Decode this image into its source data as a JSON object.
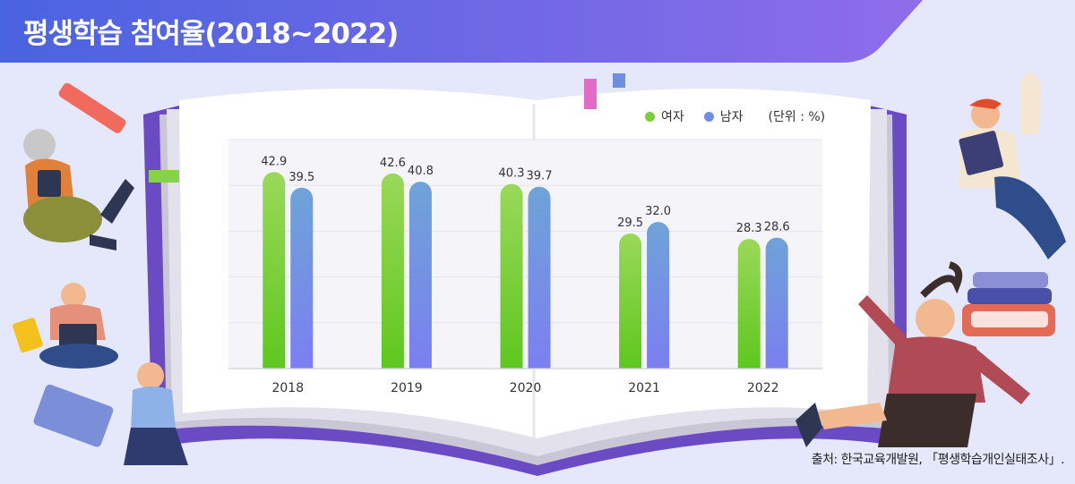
{
  "title": "평생학습 참여율(2018~2022)",
  "source": "출처: 한국교육개발원, 「평생학습개인실태조사」.",
  "colors": {
    "background": "#e5e8fb",
    "title_bar_start": "#4a63e0",
    "title_bar_end": "#8f6cea",
    "female": "#7ccd3c",
    "male": "#6e8ee0",
    "book_cover": "#6a4bc4"
  },
  "chart_data": {
    "type": "bar",
    "title": "평생학습 참여율(2018~2022)",
    "categories": [
      "2018",
      "2019",
      "2020",
      "2021",
      "2022"
    ],
    "series": [
      {
        "name": "여자",
        "values": [
          42.9,
          42.6,
          40.3,
          29.5,
          28.3
        ]
      },
      {
        "name": "남자",
        "values": [
          39.5,
          40.8,
          39.7,
          32.0,
          28.6
        ]
      }
    ],
    "value_labels": {
      "여자": [
        "42.9",
        "42.6",
        "40.3",
        "29.5",
        "28.3"
      ],
      "남자": [
        "39.5",
        "40.8",
        "39.7",
        "32.0",
        "28.6"
      ]
    },
    "unit_label": "(단위 : %)",
    "xlabel": "",
    "ylabel": "",
    "ylim": [
      0,
      50
    ],
    "grid": true,
    "legend_position": "top-right"
  }
}
